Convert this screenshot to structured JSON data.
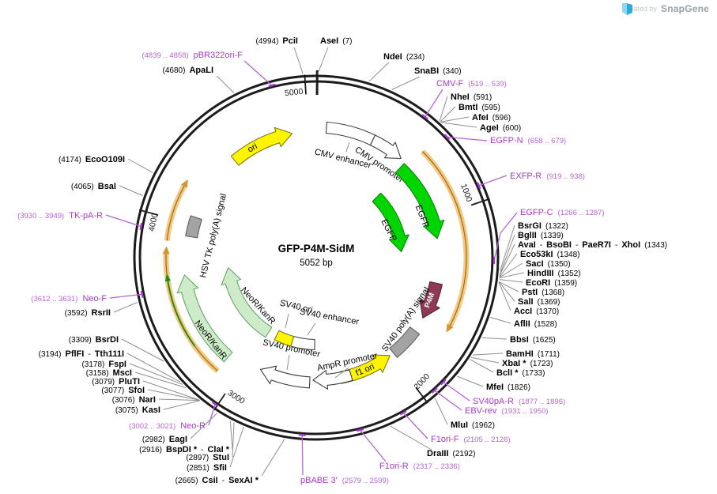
{
  "branding": {
    "prefix": "Created by",
    "brand": "SnapGene",
    "logo_icon": "snapgene-flag-icon",
    "logo_blue_light": "#8ed6f2",
    "logo_blue": "#2fa8df"
  },
  "plasmid": {
    "name": "GFP-P4M-SidM",
    "size": "5052 bp"
  },
  "tick_labels": [
    "1000",
    "2000",
    "3000",
    "4000",
    "5000"
  ],
  "features": [
    {
      "label": "ori",
      "color": "#fff500"
    },
    {
      "label": "CMV enhancer",
      "color": "#ffffff"
    },
    {
      "label": "CMV promoter",
      "color": "#ffffff"
    },
    {
      "label": "EGFP",
      "color": "#00d500"
    },
    {
      "label": "EGFP",
      "color": "#00d500"
    },
    {
      "label": "P4M",
      "color": "#8e3a56"
    },
    {
      "label": "SV40 poly(A) signal",
      "color": "#a3a3a3"
    },
    {
      "label": "f1 ori",
      "color": "#fff500"
    },
    {
      "label": "AmpR promoter",
      "color": "#ffffff"
    },
    {
      "label": "SV40 promoter",
      "color": "#ffffff"
    },
    {
      "label": "SV40 enhancer",
      "color": "#ffffff"
    },
    {
      "label": "SV40 ori",
      "color": "#fff500"
    },
    {
      "label": "NeoR/KanR",
      "color": "#cdebc8"
    },
    {
      "label": "NeoR/KanR",
      "color": "#cdebc8"
    },
    {
      "label": "HSV TK poly(A) signal",
      "color": "#a3a3a3"
    }
  ],
  "colors": {
    "backbone": "#1c1c1c",
    "enzyme_label": "#000000",
    "enzyme_leader": "#8f8f8f",
    "primer_name": "#a43bc8",
    "primer_range": "#b966d4",
    "primer_leader": "#b564d6",
    "orf_band": "#f5c87e",
    "orf_line": "#9a6a20",
    "orf_head": "#d2952f",
    "orf_green": "#1e8a1e"
  },
  "enzyme_sites": [
    {
      "parts": [
        {
          "t": "AseI",
          "b": 1
        },
        {
          "t": "(7)",
          "b": 0
        }
      ]
    },
    {
      "parts": [
        {
          "t": "NdeI",
          "b": 1
        },
        {
          "t": "(234)",
          "b": 0
        }
      ]
    },
    {
      "parts": [
        {
          "t": "SnaBI",
          "b": 1
        },
        {
          "t": "(340)",
          "b": 0
        }
      ]
    },
    {
      "parts": [
        {
          "t": "NheI",
          "b": 1
        },
        {
          "t": "(591)",
          "b": 0
        }
      ]
    },
    {
      "parts": [
        {
          "t": "BmtI",
          "b": 1
        },
        {
          "t": "(595)",
          "b": 0
        }
      ]
    },
    {
      "parts": [
        {
          "t": "AfeI",
          "b": 1
        },
        {
          "t": "(596)",
          "b": 0
        }
      ]
    },
    {
      "parts": [
        {
          "t": "AgeI",
          "b": 1
        },
        {
          "t": "(600)",
          "b": 0
        }
      ]
    },
    {
      "parts": [
        {
          "t": "BsrGI",
          "b": 1
        },
        {
          "t": "(1322)",
          "b": 0
        }
      ]
    },
    {
      "parts": [
        {
          "t": "BglII",
          "b": 1
        },
        {
          "t": "(1339)",
          "b": 0
        }
      ]
    },
    {
      "parts": [
        {
          "t": "AvaI",
          "b": 1
        },
        {
          "t": "-",
          "b": 0
        },
        {
          "t": "BsoBI",
          "b": 1
        },
        {
          "t": "-",
          "b": 0
        },
        {
          "t": "PaeR7I",
          "b": 1
        },
        {
          "t": "-",
          "b": 0
        },
        {
          "t": "XhoI",
          "b": 1
        },
        {
          "t": "(1343)",
          "b": 0
        }
      ]
    },
    {
      "parts": [
        {
          "t": "Eco53kI",
          "b": 1
        },
        {
          "t": "(1348)",
          "b": 0
        }
      ]
    },
    {
      "parts": [
        {
          "t": "SacI",
          "b": 1
        },
        {
          "t": "(1350)",
          "b": 0
        }
      ]
    },
    {
      "parts": [
        {
          "t": "HindIII",
          "b": 1
        },
        {
          "t": "(1352)",
          "b": 0
        }
      ]
    },
    {
      "parts": [
        {
          "t": "EcoRI",
          "b": 1
        },
        {
          "t": "(1359)",
          "b": 0
        }
      ]
    },
    {
      "parts": [
        {
          "t": "PstI",
          "b": 1
        },
        {
          "t": "(1368)",
          "b": 0
        }
      ]
    },
    {
      "parts": [
        {
          "t": "SalI",
          "b": 1
        },
        {
          "t": "(1369)",
          "b": 0
        }
      ]
    },
    {
      "parts": [
        {
          "t": "AccI",
          "b": 1
        },
        {
          "t": "(1370)",
          "b": 0
        }
      ]
    },
    {
      "parts": [
        {
          "t": "AflII",
          "b": 1
        },
        {
          "t": "(1528)",
          "b": 0
        }
      ]
    },
    {
      "parts": [
        {
          "t": "BbsI",
          "b": 1
        },
        {
          "t": "(1625)",
          "b": 0
        }
      ]
    },
    {
      "parts": [
        {
          "t": "BamHI",
          "b": 1
        },
        {
          "t": "(1711)",
          "b": 0
        }
      ]
    },
    {
      "parts": [
        {
          "t": "XbaI *",
          "b": 1
        },
        {
          "t": "(1723)",
          "b": 0
        }
      ]
    },
    {
      "parts": [
        {
          "t": "BclI *",
          "b": 1
        },
        {
          "t": "(1733)",
          "b": 0
        }
      ]
    },
    {
      "parts": [
        {
          "t": "MfeI",
          "b": 1
        },
        {
          "t": "(1826)",
          "b": 0
        }
      ]
    },
    {
      "parts": [
        {
          "t": "MluI",
          "b": 1
        },
        {
          "t": "(1962)",
          "b": 0
        }
      ]
    },
    {
      "parts": [
        {
          "t": "DraIII",
          "b": 1
        },
        {
          "t": "(2192)",
          "b": 0
        }
      ]
    },
    {
      "parts": [
        {
          "t": "(2665)",
          "b": 0
        },
        {
          "t": "CsiI",
          "b": 1
        },
        {
          "t": "-",
          "b": 0
        },
        {
          "t": "SexAI *",
          "b": 1
        }
      ]
    },
    {
      "parts": [
        {
          "t": "(2851)",
          "b": 0
        },
        {
          "t": "SfiI",
          "b": 1
        }
      ]
    },
    {
      "parts": [
        {
          "t": "(2897)",
          "b": 0
        },
        {
          "t": "StuI",
          "b": 1
        }
      ]
    },
    {
      "parts": [
        {
          "t": "(2916)",
          "b": 0
        },
        {
          "t": "BspDI *",
          "b": 1
        },
        {
          "t": "-",
          "b": 0
        },
        {
          "t": "ClaI *",
          "b": 1
        }
      ]
    },
    {
      "parts": [
        {
          "t": "(2982)",
          "b": 0
        },
        {
          "t": "EagI",
          "b": 1
        }
      ]
    },
    {
      "parts": [
        {
          "t": "(3075)",
          "b": 0
        },
        {
          "t": "KasI",
          "b": 1
        }
      ]
    },
    {
      "parts": [
        {
          "t": "(3076)",
          "b": 0
        },
        {
          "t": "NarI",
          "b": 1
        }
      ]
    },
    {
      "parts": [
        {
          "t": "(3077)",
          "b": 0
        },
        {
          "t": "SfoI",
          "b": 1
        }
      ]
    },
    {
      "parts": [
        {
          "t": "(3079)",
          "b": 0
        },
        {
          "t": "PluTI",
          "b": 1
        }
      ]
    },
    {
      "parts": [
        {
          "t": "(3158)",
          "b": 0
        },
        {
          "t": "MscI",
          "b": 1
        }
      ]
    },
    {
      "parts": [
        {
          "t": "(3178)",
          "b": 0
        },
        {
          "t": "FspI",
          "b": 1
        }
      ]
    },
    {
      "parts": [
        {
          "t": "(3194)",
          "b": 0
        },
        {
          "t": "PflFI",
          "b": 1
        },
        {
          "t": "-",
          "b": 0
        },
        {
          "t": "Tth111I",
          "b": 1
        }
      ]
    },
    {
      "parts": [
        {
          "t": "(3309)",
          "b": 0
        },
        {
          "t": "BsrDI",
          "b": 1
        }
      ]
    },
    {
      "parts": [
        {
          "t": "(3592)",
          "b": 0
        },
        {
          "t": "RsrII",
          "b": 1
        }
      ]
    },
    {
      "parts": [
        {
          "t": "(4065)",
          "b": 0
        },
        {
          "t": "BsaI",
          "b": 1
        }
      ]
    },
    {
      "parts": [
        {
          "t": "(4174)",
          "b": 0
        },
        {
          "t": "EcoO109I",
          "b": 1
        }
      ]
    },
    {
      "parts": [
        {
          "t": "(4680)",
          "b": 0
        },
        {
          "t": "ApaLI",
          "b": 1
        }
      ]
    },
    {
      "parts": [
        {
          "t": "(4994)",
          "b": 0
        },
        {
          "t": "PciI",
          "b": 1
        }
      ]
    }
  ],
  "primers": [
    {
      "name": "CMV-F",
      "range": "(519 .. 539)"
    },
    {
      "name": "EGFP-N",
      "range": "(658 .. 679)"
    },
    {
      "name": "EXFP-R",
      "range": "(919 .. 938)"
    },
    {
      "name": "EGFP-C",
      "range": "(1266 .. 1287)"
    },
    {
      "name": "SV40pA-R",
      "range": "(1877 .. 1896)"
    },
    {
      "name": "EBV-rev",
      "range": "(1931 .. 1950)"
    },
    {
      "name": "F1ori-F",
      "range": "(2105 .. 2126)"
    },
    {
      "name": "F1ori-R",
      "range": "(2317 .. 2336)"
    },
    {
      "name": "pBABE 3'",
      "range": "(2579 .. 2599)"
    },
    {
      "name": "Neo-R",
      "range": "(3002 .. 3021)"
    },
    {
      "name": "Neo-F",
      "range": "(3612 .. 3631)"
    },
    {
      "name": "TK-pA-R",
      "range": "(3930 .. 3949)"
    },
    {
      "name": "pBR322ori-F",
      "range": "(4839 .. 4858)"
    }
  ]
}
